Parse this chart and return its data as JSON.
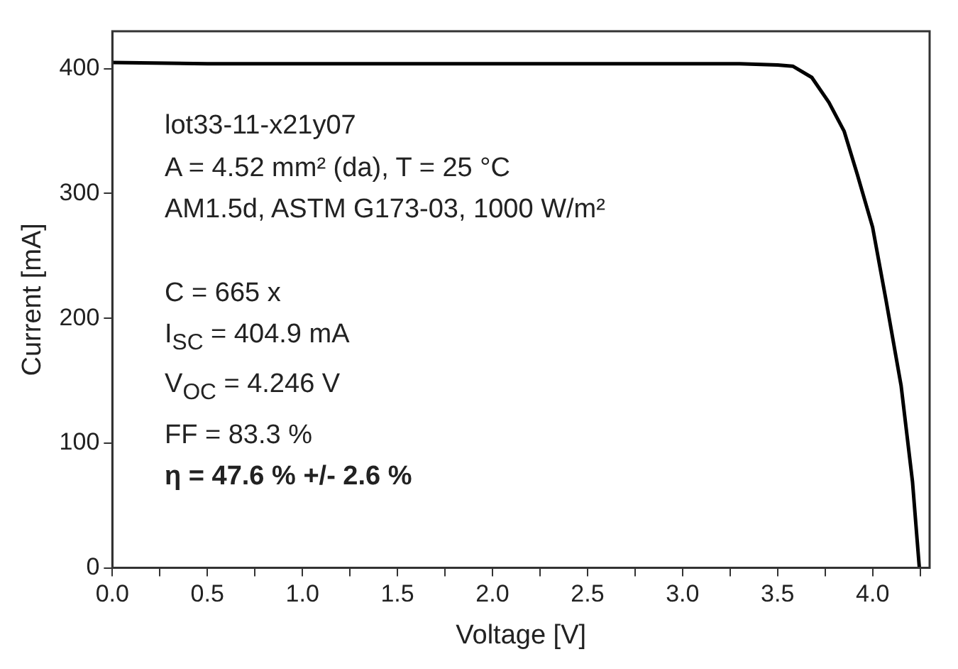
{
  "chart_data": {
    "type": "line",
    "xlabel": "Voltage [V]",
    "ylabel": "Current [mA]",
    "x": [
      0,
      0.5,
      1,
      1.5,
      2,
      2.5,
      3,
      3.3,
      3.5,
      3.58,
      3.68,
      3.77,
      3.85,
      3.92,
      4.0,
      4.07,
      4.15,
      4.21,
      4.246
    ],
    "series": [
      {
        "color": "#000000",
        "values": [
          405,
          404,
          404,
          404,
          404,
          404,
          404,
          404,
          403,
          402,
          393,
          373,
          350,
          315,
          273,
          215,
          146,
          69,
          0
        ]
      }
    ],
    "xlim": [
      0,
      4.3
    ],
    "ylim": [
      0,
      430
    ],
    "xticks": [
      {
        "value": 0,
        "label": "0.0"
      },
      {
        "value": 0.25,
        "label": null
      },
      {
        "value": 0.5,
        "label": "0.5"
      },
      {
        "value": 0.75,
        "label": null
      },
      {
        "value": 1,
        "label": "1.0"
      },
      {
        "value": 1.25,
        "label": null
      },
      {
        "value": 1.5,
        "label": "1.5"
      },
      {
        "value": 1.75,
        "label": null
      },
      {
        "value": 2,
        "label": "2.0"
      },
      {
        "value": 2.25,
        "label": null
      },
      {
        "value": 2.5,
        "label": "2.5"
      },
      {
        "value": 2.75,
        "label": null
      },
      {
        "value": 3,
        "label": "3.0"
      },
      {
        "value": 3.25,
        "label": null
      },
      {
        "value": 3.5,
        "label": "3.5"
      },
      {
        "value": 3.75,
        "label": null
      },
      {
        "value": 4,
        "label": "4.0"
      },
      {
        "value": 4.25,
        "label": null
      }
    ],
    "yticks": [
      0,
      100,
      200,
      300,
      400
    ],
    "grid": false,
    "legend": false,
    "marker": "none",
    "line_style": "solid",
    "annotations": [
      "lot33-11-x21y07",
      "A = 4.52 mm² (da), T = 25 °C",
      "AM1.5d, ASTM G173-03, 1000 W/m²",
      "C = 665 x",
      "I$_{SC}$ = 404.9 mA",
      "V$_{OC}$ = 4.246 V",
      "FF = 83.3 %",
      "η = 47.6 % +/- 2.6 %"
    ]
  }
}
